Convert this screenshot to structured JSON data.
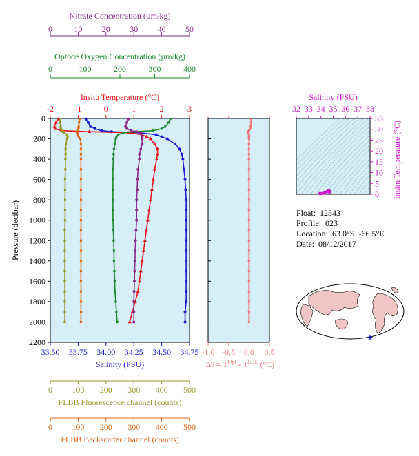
{
  "colors": {
    "panel_bg": "#d5eef8",
    "nitrate": "#8a2a8a",
    "oxygen": "#1a8a2a",
    "temperature": "#e8141a",
    "salinity": "#1a1ad0",
    "fluorescence": "#9a9a2a",
    "backscatter": "#e06a1a",
    "delta_t": "#f27a7a",
    "ts_axis": "#d01ad0"
  },
  "float_info": {
    "float": "Float:  12543",
    "profile": "Profile:  023",
    "location": "Location:  63.0°S  -66.5°E",
    "date": "Date:  08/12/2017"
  },
  "chart_data": [
    {
      "type": "line",
      "name": "main-profile-panel",
      "ylabel": "Pressure (decibar)",
      "ylim": [
        2200,
        0
      ],
      "yticks": [
        0,
        200,
        400,
        600,
        800,
        1000,
        1200,
        1400,
        1600,
        1800,
        2000,
        2200
      ],
      "axes": {
        "nitrate": {
          "label": "Nitrate Concentration (µm/kg)",
          "range": [
            0,
            50
          ],
          "ticks": [
            0,
            10,
            20,
            30,
            40,
            50
          ]
        },
        "oxygen": {
          "label": "Optode Oxygen Concentration (µm/kg)",
          "range": [
            0,
            400
          ],
          "ticks": [
            0,
            100,
            200,
            300,
            400
          ]
        },
        "temperature": {
          "label": "Insitu Temperature (°C)",
          "range": [
            -2,
            3
          ],
          "ticks": [
            -2,
            -1,
            0,
            1,
            2,
            3
          ]
        },
        "salinity": {
          "label": "Salinity (PSU)",
          "range": [
            33.5,
            34.75
          ],
          "ticks": [
            "33.50",
            "33.75",
            "34.00",
            "34.25",
            "34.50",
            "34.75"
          ]
        },
        "fluorescence": {
          "label": "FLBB Fluorescence channel (counts)",
          "range": [
            0,
            500
          ],
          "ticks": [
            0,
            100,
            200,
            300,
            400,
            500
          ]
        },
        "backscatter": {
          "label": "FLBB Backscatter channel (counts)",
          "range": [
            0,
            500
          ],
          "ticks": [
            0,
            100,
            200,
            300,
            400,
            500
          ]
        }
      },
      "pressure": [
        5,
        40,
        80,
        100,
        120,
        130,
        140,
        160,
        180,
        200,
        250,
        300,
        350,
        400,
        500,
        600,
        700,
        800,
        900,
        1000,
        1100,
        1200,
        1300,
        1400,
        1500,
        1600,
        1700,
        1800,
        1900,
        2000
      ],
      "series": [
        {
          "name": "Salinity (PSU)",
          "axis": "salinity",
          "values": [
            33.82,
            33.84,
            33.86,
            33.9,
            33.96,
            34.05,
            34.3,
            34.45,
            34.5,
            34.55,
            34.62,
            34.66,
            34.68,
            34.69,
            34.7,
            34.71,
            34.715,
            34.72,
            34.72,
            34.72,
            34.72,
            34.72,
            34.72,
            34.72,
            34.72,
            34.72,
            34.72,
            34.72,
            34.71,
            34.71
          ]
        },
        {
          "name": "Insitu Temperature (°C)",
          "axis": "temperature",
          "values": [
            -1.7,
            -1.8,
            -1.85,
            -1.82,
            -1.6,
            -0.6,
            0.8,
            1.3,
            1.45,
            1.6,
            1.75,
            1.85,
            1.85,
            1.82,
            1.75,
            1.7,
            1.65,
            1.6,
            1.55,
            1.5,
            1.45,
            1.4,
            1.35,
            1.3,
            1.25,
            1.2,
            1.15,
            1.05,
            0.95,
            0.85
          ]
        },
        {
          "name": "Optode Oxygen Concentration (µm/kg)",
          "axis": "oxygen",
          "values": [
            345,
            340,
            330,
            320,
            295,
            245,
            210,
            195,
            190,
            188,
            185,
            183,
            182,
            181,
            180,
            180,
            180,
            180,
            180,
            180,
            181,
            182,
            183,
            183,
            184,
            185,
            186,
            188,
            190,
            192
          ]
        },
        {
          "name": "Nitrate Concentration (µm/kg)",
          "axis": "nitrate",
          "values": [
            28,
            27.5,
            27,
            27.5,
            29,
            31,
            32.5,
            32.8,
            33,
            33,
            33,
            32.5,
            32,
            32,
            31.5,
            31.3,
            31.2,
            31,
            31,
            31,
            30.8,
            30.6,
            30.5,
            30.4,
            30.3,
            30.2,
            30.1,
            30,
            30,
            30
          ]
        },
        {
          "name": "FLBB Fluorescence channel (counts)",
          "axis": "fluorescence",
          "values": [
            35,
            36,
            37,
            38,
            40,
            45,
            50,
            60,
            62,
            60,
            56,
            55,
            55,
            54,
            54,
            53,
            53,
            53,
            53,
            53,
            52,
            52,
            52,
            52,
            52,
            52,
            52,
            52,
            52,
            52
          ]
        },
        {
          "name": "FLBB Backscatter channel (counts)",
          "axis": "backscatter",
          "values": [
            105,
            103,
            102,
            101,
            100,
            99,
            98,
            100,
            102,
            108,
            110,
            110,
            110,
            110,
            110,
            110,
            110,
            110,
            110,
            110,
            110,
            110,
            110,
            110,
            110,
            110,
            110,
            110,
            110,
            110
          ]
        }
      ]
    },
    {
      "type": "line",
      "name": "delta-t-panel",
      "xlabel": "ΔT= T^Opt - T^SBE (°C)",
      "xlim": [
        -1.0,
        0.5
      ],
      "xticks": [
        "-1.0",
        "-0.5",
        "0.0",
        "0.5"
      ],
      "pressure": [
        5,
        40,
        80,
        100,
        120,
        130,
        140,
        160,
        180,
        200,
        250,
        300,
        350,
        400,
        500,
        600,
        700,
        800,
        900,
        1000,
        1100,
        1200,
        1300,
        1400,
        1500,
        1600,
        1700,
        1800,
        1900,
        2000
      ],
      "values": [
        0.05,
        0.05,
        0.04,
        0.04,
        0.0,
        -0.03,
        -0.02,
        0.0,
        0.0,
        0.0,
        0.0,
        0.0,
        0.0,
        0.0,
        0.0,
        0.0,
        0.0,
        0.0,
        0.0,
        0.0,
        0.0,
        0.0,
        0.0,
        0.0,
        0.0,
        0.0,
        0.0,
        0.0,
        0.0,
        0.0
      ]
    },
    {
      "type": "scatter",
      "name": "ts-diagram",
      "title": "Salinity (PSU)",
      "ylabel": "Insitu Temperature (°C)",
      "xlim": [
        32,
        38
      ],
      "ylim": [
        0,
        35
      ],
      "xticks": [
        32,
        33,
        34,
        35,
        36,
        37,
        38
      ],
      "yticks": [
        0,
        5,
        10,
        15,
        20,
        25,
        30,
        35
      ],
      "points": [
        [
          34.2,
          0.4
        ],
        [
          34.3,
          0.8
        ],
        [
          34.4,
          1.0
        ],
        [
          34.5,
          1.3
        ],
        [
          34.6,
          1.6
        ],
        [
          34.65,
          1.8
        ],
        [
          34.7,
          1.5
        ],
        [
          34.72,
          1.0
        ],
        [
          34.7,
          0.8
        ],
        [
          34.0,
          -1.7
        ],
        [
          33.9,
          -1.8
        ]
      ]
    }
  ]
}
